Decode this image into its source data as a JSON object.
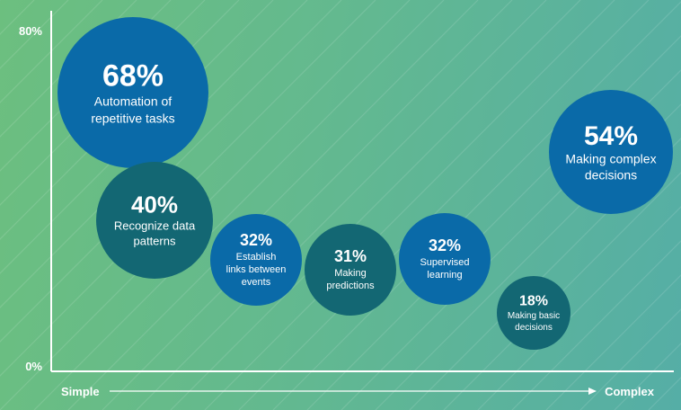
{
  "chart_data": {
    "type": "bubble",
    "y_tick_labels": [
      "0%",
      "80%"
    ],
    "ylim": [
      0,
      80
    ],
    "x_start_label": "Simple",
    "x_end_label": "Complex",
    "grid": false,
    "colors": {
      "bubble_dark_blue": "#0a6aa8",
      "bubble_teal": "#136773",
      "axis": "#ffffff",
      "text": "#ffffff"
    },
    "points": [
      {
        "value": "68%",
        "label_lines": [
          "Automation of",
          "repetitive tasks"
        ],
        "y": 68,
        "color": "bubble_dark_blue"
      },
      {
        "value": "40%",
        "label_lines": [
          "Recognize data",
          "patterns"
        ],
        "y": 40,
        "color": "bubble_teal"
      },
      {
        "value": "32%",
        "label_lines": [
          "Establish",
          "links between",
          "events"
        ],
        "y": 32,
        "color": "bubble_dark_blue"
      },
      {
        "value": "31%",
        "label_lines": [
          "Making",
          "predictions"
        ],
        "y": 31,
        "color": "bubble_teal"
      },
      {
        "value": "32%",
        "label_lines": [
          "Supervised",
          "learning"
        ],
        "y": 32,
        "color": "bubble_dark_blue"
      },
      {
        "value": "18%",
        "label_lines": [
          "Making basic",
          "decisions"
        ],
        "y": 18,
        "color": "bubble_teal"
      },
      {
        "value": "54%",
        "label_lines": [
          "Making complex",
          "decisions"
        ],
        "y": 54,
        "color": "bubble_dark_blue"
      }
    ]
  }
}
